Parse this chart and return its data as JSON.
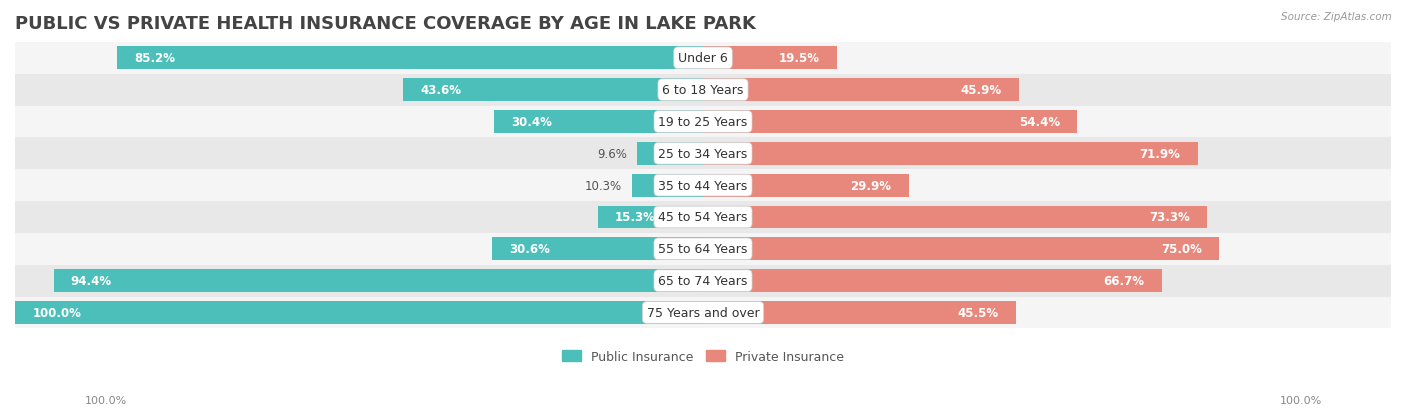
{
  "title": "PUBLIC VS PRIVATE HEALTH INSURANCE COVERAGE BY AGE IN LAKE PARK",
  "source": "Source: ZipAtlas.com",
  "categories": [
    "Under 6",
    "6 to 18 Years",
    "19 to 25 Years",
    "25 to 34 Years",
    "35 to 44 Years",
    "45 to 54 Years",
    "55 to 64 Years",
    "65 to 74 Years",
    "75 Years and over"
  ],
  "public": [
    85.2,
    43.6,
    30.4,
    9.6,
    10.3,
    15.3,
    30.6,
    94.4,
    100.0
  ],
  "private": [
    19.5,
    45.9,
    54.4,
    71.9,
    29.9,
    73.3,
    75.0,
    66.7,
    45.5
  ],
  "public_color": "#4dbfba",
  "private_color": "#e8877b",
  "public_color_light": "#a8dedd",
  "private_color_light": "#f0b8b0",
  "fig_bg_color": "#ffffff",
  "row_bg_even": "#f5f5f5",
  "row_bg_odd": "#e8e8e8",
  "title_fontsize": 13,
  "label_fontsize": 9,
  "bar_label_fontsize": 8.5,
  "legend_fontsize": 9,
  "footer_fontsize": 8,
  "bar_height": 0.72,
  "xlim": 100.0,
  "footer_label": "100.0%"
}
